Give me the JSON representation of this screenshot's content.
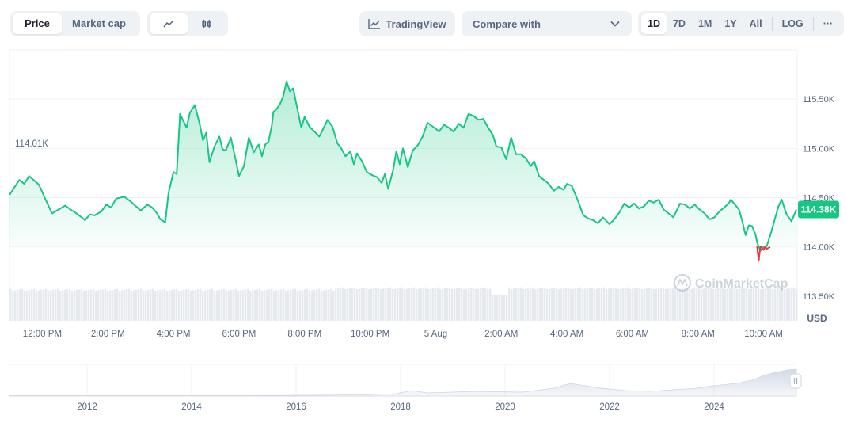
{
  "controls": {
    "type_options": [
      "Price",
      "Market cap"
    ],
    "active_type": "Price",
    "tradingview_label": "TradingView",
    "compare_label": "Compare with",
    "ranges": [
      "1D",
      "7D",
      "1M",
      "1Y",
      "All"
    ],
    "active_range": "1D",
    "log_label": "LOG",
    "more_label": "···"
  },
  "colors": {
    "up": "#16c784",
    "down": "#ea3943",
    "grid": "#eff2f5",
    "volume": "#e6e9ee"
  },
  "chart_data": {
    "type": "line",
    "title": "",
    "currency_label": "USD",
    "watermark": "CoinMarketCap",
    "ylim": [
      113.25,
      116.0
    ],
    "y_ticks": [
      113.5,
      114.0,
      114.5,
      115.0,
      115.5
    ],
    "y_tick_labels": [
      "113.50K",
      "114.00K",
      "114.50K",
      "115.00K",
      "115.50K"
    ],
    "open_price": 114.01,
    "open_price_label": "114.01K",
    "last_price": 114.38,
    "last_price_label": "114.38K",
    "x_ticks": [
      "12:00 PM",
      "2:00 PM",
      "4:00 PM",
      "6:00 PM",
      "8:00 PM",
      "10:00 PM",
      "5 Aug",
      "2:00 AM",
      "4:00 AM",
      "6:00 AM",
      "8:00 AM",
      "10:00 AM"
    ],
    "x_tick_hours": [
      1,
      3,
      5,
      7,
      9,
      11,
      13,
      15,
      17,
      19,
      21,
      23
    ],
    "x_range_hours": [
      0,
      24
    ],
    "series": [
      {
        "name": "Price (K USD)",
        "points": [
          [
            0.0,
            114.53
          ],
          [
            0.3,
            114.68
          ],
          [
            0.45,
            114.64
          ],
          [
            0.6,
            114.72
          ],
          [
            0.9,
            114.63
          ],
          [
            1.1,
            114.48
          ],
          [
            1.3,
            114.34
          ],
          [
            1.5,
            114.38
          ],
          [
            1.7,
            114.42
          ],
          [
            1.9,
            114.37
          ],
          [
            2.0,
            114.35
          ],
          [
            2.2,
            114.3
          ],
          [
            2.3,
            114.27
          ],
          [
            2.45,
            114.33
          ],
          [
            2.6,
            114.32
          ],
          [
            2.8,
            114.36
          ],
          [
            2.95,
            114.43
          ],
          [
            3.1,
            114.4
          ],
          [
            3.25,
            114.49
          ],
          [
            3.5,
            114.51
          ],
          [
            3.7,
            114.46
          ],
          [
            3.9,
            114.4
          ],
          [
            4.0,
            114.37
          ],
          [
            4.2,
            114.43
          ],
          [
            4.35,
            114.4
          ],
          [
            4.5,
            114.34
          ],
          [
            4.6,
            114.28
          ],
          [
            4.75,
            114.25
          ],
          [
            4.85,
            114.55
          ],
          [
            5.0,
            114.76
          ],
          [
            5.1,
            114.74
          ],
          [
            5.2,
            115.35
          ],
          [
            5.3,
            115.28
          ],
          [
            5.4,
            115.21
          ],
          [
            5.5,
            115.36
          ],
          [
            5.65,
            115.44
          ],
          [
            5.8,
            115.25
          ],
          [
            5.9,
            115.08
          ],
          [
            6.0,
            115.16
          ],
          [
            6.1,
            114.86
          ],
          [
            6.25,
            115.02
          ],
          [
            6.4,
            115.12
          ],
          [
            6.5,
            114.99
          ],
          [
            6.6,
            114.98
          ],
          [
            6.75,
            115.11
          ],
          [
            6.9,
            114.88
          ],
          [
            7.0,
            114.72
          ],
          [
            7.15,
            114.82
          ],
          [
            7.3,
            115.11
          ],
          [
            7.45,
            114.96
          ],
          [
            7.6,
            115.04
          ],
          [
            7.7,
            114.92
          ],
          [
            7.8,
            115.04
          ],
          [
            7.9,
            115.07
          ],
          [
            8.0,
            115.23
          ],
          [
            8.05,
            115.37
          ],
          [
            8.15,
            115.4
          ],
          [
            8.25,
            115.45
          ],
          [
            8.35,
            115.53
          ],
          [
            8.45,
            115.68
          ],
          [
            8.55,
            115.58
          ],
          [
            8.65,
            115.61
          ],
          [
            8.75,
            115.45
          ],
          [
            8.9,
            115.21
          ],
          [
            9.0,
            115.32
          ],
          [
            9.15,
            115.22
          ],
          [
            9.3,
            115.17
          ],
          [
            9.45,
            115.12
          ],
          [
            9.6,
            115.22
          ],
          [
            9.7,
            115.29
          ],
          [
            9.85,
            115.22
          ],
          [
            10.0,
            115.05
          ],
          [
            10.1,
            115.01
          ],
          [
            10.25,
            114.92
          ],
          [
            10.4,
            114.97
          ],
          [
            10.5,
            114.84
          ],
          [
            10.6,
            114.95
          ],
          [
            10.75,
            114.87
          ],
          [
            10.9,
            114.76
          ],
          [
            11.05,
            114.73
          ],
          [
            11.2,
            114.71
          ],
          [
            11.35,
            114.65
          ],
          [
            11.45,
            114.74
          ],
          [
            11.55,
            114.59
          ],
          [
            11.7,
            114.78
          ],
          [
            11.8,
            114.97
          ],
          [
            11.9,
            114.84
          ],
          [
            12.0,
            115.0
          ],
          [
            12.15,
            114.81
          ],
          [
            12.3,
            114.98
          ],
          [
            12.45,
            115.03
          ],
          [
            12.6,
            115.12
          ],
          [
            12.75,
            115.26
          ],
          [
            13.0,
            115.2
          ],
          [
            13.1,
            115.17
          ],
          [
            13.25,
            115.24
          ],
          [
            13.4,
            115.21
          ],
          [
            13.55,
            115.17
          ],
          [
            13.7,
            115.25
          ],
          [
            13.85,
            115.21
          ],
          [
            14.0,
            115.35
          ],
          [
            14.15,
            115.33
          ],
          [
            14.3,
            115.29
          ],
          [
            14.45,
            115.3
          ],
          [
            14.6,
            115.21
          ],
          [
            14.75,
            115.13
          ],
          [
            14.85,
            115.02
          ],
          [
            15.0,
            115.01
          ],
          [
            15.15,
            114.89
          ],
          [
            15.3,
            115.11
          ],
          [
            15.45,
            114.94
          ],
          [
            15.6,
            114.94
          ],
          [
            15.75,
            114.9
          ],
          [
            15.9,
            114.82
          ],
          [
            16.0,
            114.87
          ],
          [
            16.15,
            114.72
          ],
          [
            16.3,
            114.68
          ],
          [
            16.45,
            114.64
          ],
          [
            16.6,
            114.57
          ],
          [
            16.75,
            114.61
          ],
          [
            16.9,
            114.58
          ],
          [
            17.0,
            114.64
          ],
          [
            17.15,
            114.62
          ],
          [
            17.35,
            114.46
          ],
          [
            17.5,
            114.32
          ],
          [
            17.65,
            114.29
          ],
          [
            17.8,
            114.27
          ],
          [
            17.95,
            114.24
          ],
          [
            18.1,
            114.3
          ],
          [
            18.3,
            114.23
          ],
          [
            18.45,
            114.28
          ],
          [
            18.6,
            114.35
          ],
          [
            18.75,
            114.44
          ],
          [
            18.9,
            114.4
          ],
          [
            19.05,
            114.44
          ],
          [
            19.2,
            114.39
          ],
          [
            19.35,
            114.41
          ],
          [
            19.5,
            114.47
          ],
          [
            19.65,
            114.45
          ],
          [
            19.8,
            114.48
          ],
          [
            19.95,
            114.38
          ],
          [
            20.1,
            114.34
          ],
          [
            20.25,
            114.3
          ],
          [
            20.45,
            114.44
          ],
          [
            20.6,
            114.43
          ],
          [
            20.75,
            114.39
          ],
          [
            20.9,
            114.43
          ],
          [
            21.05,
            114.38
          ],
          [
            21.2,
            114.34
          ],
          [
            21.35,
            114.28
          ],
          [
            21.5,
            114.3
          ],
          [
            21.65,
            114.36
          ],
          [
            21.8,
            114.4
          ],
          [
            21.95,
            114.45
          ],
          [
            22.0,
            114.48
          ],
          [
            22.15,
            114.42
          ],
          [
            22.25,
            114.38
          ],
          [
            22.35,
            114.26
          ],
          [
            22.45,
            114.12
          ],
          [
            22.55,
            114.22
          ],
          [
            22.65,
            114.21
          ],
          [
            22.75,
            114.13
          ],
          [
            22.8,
            114.05
          ],
          [
            22.9,
            113.96
          ],
          [
            23.0,
            114.0
          ],
          [
            23.1,
            114.01
          ],
          [
            23.25,
            114.17
          ],
          [
            23.45,
            114.41
          ],
          [
            23.55,
            114.48
          ],
          [
            23.7,
            114.33
          ],
          [
            23.85,
            114.26
          ],
          [
            24.0,
            114.38
          ]
        ]
      }
    ],
    "below_open_segments": [
      {
        "name": "dip-1",
        "points": [
          [
            22.8,
            114.01
          ],
          [
            22.85,
            113.86
          ],
          [
            22.9,
            114.0
          ]
        ]
      },
      {
        "name": "dip-2",
        "points": [
          [
            22.9,
            114.01
          ],
          [
            23.0,
            113.97
          ],
          [
            23.05,
            114.0
          ],
          [
            23.1,
            113.98
          ],
          [
            23.2,
            114.0
          ]
        ]
      }
    ],
    "overview": {
      "x_tick_labels": [
        "2012",
        "2014",
        "2016",
        "2018",
        "2020",
        "2022",
        "2024"
      ]
    }
  }
}
